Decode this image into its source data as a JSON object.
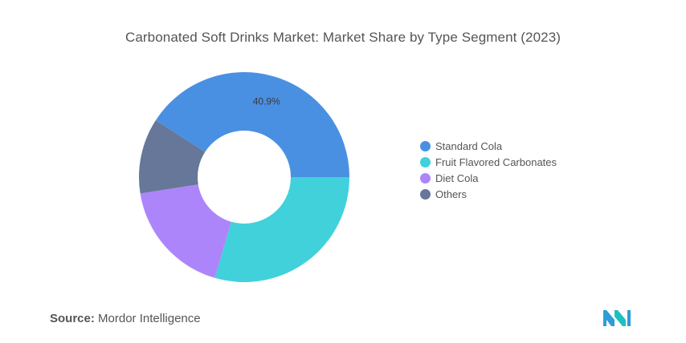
{
  "chart_data": {
    "type": "donut",
    "title": "Carbonated Soft Drinks Market: Market Share by Type Segment (2023)",
    "categories": [
      "Standard Cola",
      "Fruit Flavored Carbonates",
      "Diet Cola",
      "Others"
    ],
    "values": [
      40.9,
      29.5,
      18.0,
      11.6
    ],
    "colors": [
      "#4a90e2",
      "#40d1db",
      "#ad85fb",
      "#667799"
    ],
    "data_labels": [
      {
        "category": "Standard Cola",
        "text": "40.9%"
      }
    ],
    "legend_position": "right"
  },
  "source": {
    "label": "Source:",
    "text": "Mordor Intelligence"
  },
  "logo": {
    "colors": [
      "#2e9cd6",
      "#1fbfbf"
    ]
  }
}
